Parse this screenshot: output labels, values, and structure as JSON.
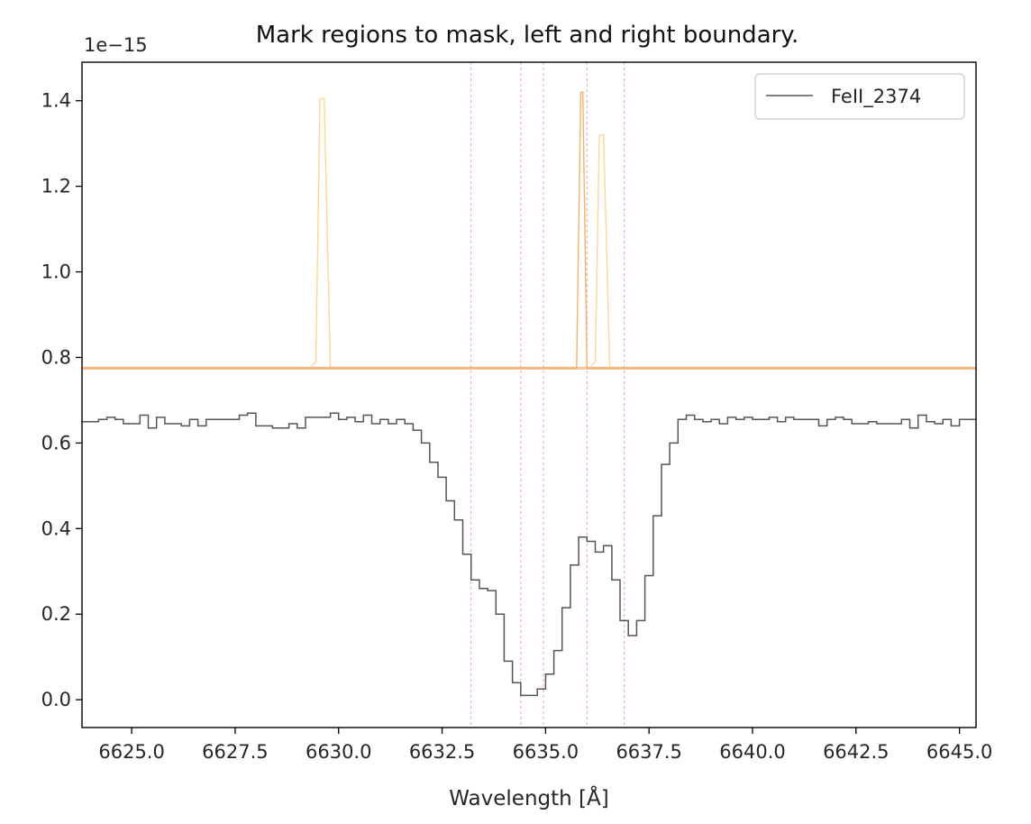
{
  "chart_data": {
    "type": "line",
    "title": "Mark regions to mask, left and right boundary.",
    "xlabel": "Wavelength  [Å]",
    "ylabel": "",
    "y_offset_label": "1e−15",
    "y_scale": 1e-15,
    "xlim": [
      6623.8,
      6645.4
    ],
    "ylim": [
      -0.065,
      1.49
    ],
    "x_ticks": [
      6625.0,
      6627.5,
      6630.0,
      6632.5,
      6635.0,
      6637.5,
      6640.0,
      6642.5,
      6645.0
    ],
    "x_tick_labels": [
      "6625.0",
      "6627.5",
      "6630.0",
      "6632.5",
      "6635.0",
      "6637.5",
      "6640.0",
      "6642.5",
      "6645.0"
    ],
    "y_ticks": [
      0.0,
      0.2,
      0.4,
      0.6,
      0.8,
      1.0,
      1.2,
      1.4
    ],
    "y_tick_labels": [
      "0.0",
      "0.2",
      "0.4",
      "0.6",
      "0.8",
      "1.0",
      "1.2",
      "1.4"
    ],
    "grid": false,
    "legend": {
      "placement": "top-right",
      "entries": [
        "FeII_2374"
      ]
    },
    "mask_boundaries": [
      6633.2,
      6634.4,
      6634.95,
      6636.0,
      6636.9
    ],
    "colors": {
      "flux": "#555555",
      "mask_line": "#f4a3a3",
      "model_light": "#ffd59a",
      "model_dark": "#f5b26a",
      "baseline": "#f6b894"
    },
    "series": [
      {
        "name": "FeII_2374",
        "style": "step",
        "x": [
          6623.8,
          6624.2,
          6624.4,
          6624.6,
          6624.8,
          6625.0,
          6625.2,
          6625.4,
          6625.6,
          6625.8,
          6626.0,
          6626.2,
          6626.4,
          6626.6,
          6626.8,
          6627.0,
          6627.2,
          6627.4,
          6627.6,
          6627.8,
          6628.0,
          6628.2,
          6628.4,
          6628.6,
          6628.8,
          6629.0,
          6629.2,
          6629.4,
          6629.6,
          6629.8,
          6630.0,
          6630.2,
          6630.4,
          6630.6,
          6630.8,
          6631.0,
          6631.2,
          6631.4,
          6631.6,
          6631.8,
          6632.0,
          6632.2,
          6632.4,
          6632.6,
          6632.8,
          6633.0,
          6633.2,
          6633.4,
          6633.6,
          6633.8,
          6634.0,
          6634.2,
          6634.4,
          6634.6,
          6634.8,
          6635.0,
          6635.2,
          6635.4,
          6635.6,
          6635.8,
          6636.0,
          6636.2,
          6636.4,
          6636.6,
          6636.8,
          6637.0,
          6637.2,
          6637.4,
          6637.6,
          6637.8,
          6638.0,
          6638.2,
          6638.4,
          6638.6,
          6638.8,
          6639.0,
          6639.2,
          6639.4,
          6639.6,
          6639.8,
          6640.0,
          6640.2,
          6640.4,
          6640.6,
          6640.8,
          6641.0,
          6641.2,
          6641.4,
          6641.6,
          6641.8,
          6642.0,
          6642.2,
          6642.4,
          6642.6,
          6642.8,
          6643.0,
          6643.2,
          6643.4,
          6643.6,
          6643.8,
          6644.0,
          6644.2,
          6644.4,
          6644.6,
          6644.8,
          6645.0
        ],
        "y": [
          0.65,
          0.655,
          0.66,
          0.655,
          0.645,
          0.645,
          0.665,
          0.635,
          0.66,
          0.645,
          0.645,
          0.64,
          0.655,
          0.64,
          0.655,
          0.655,
          0.655,
          0.655,
          0.665,
          0.67,
          0.64,
          0.64,
          0.635,
          0.635,
          0.645,
          0.635,
          0.66,
          0.66,
          0.66,
          0.67,
          0.655,
          0.66,
          0.65,
          0.665,
          0.645,
          0.655,
          0.645,
          0.655,
          0.645,
          0.63,
          0.6,
          0.555,
          0.52,
          0.465,
          0.42,
          0.34,
          0.28,
          0.26,
          0.255,
          0.2,
          0.09,
          0.04,
          0.01,
          0.01,
          0.025,
          0.06,
          0.115,
          0.215,
          0.315,
          0.38,
          0.37,
          0.345,
          0.36,
          0.28,
          0.185,
          0.15,
          0.185,
          0.29,
          0.43,
          0.55,
          0.6,
          0.655,
          0.665,
          0.655,
          0.65,
          0.655,
          0.645,
          0.66,
          0.655,
          0.66,
          0.655,
          0.655,
          0.66,
          0.65,
          0.66,
          0.655,
          0.655,
          0.655,
          0.64,
          0.655,
          0.66,
          0.655,
          0.645,
          0.645,
          0.65,
          0.645,
          0.645,
          0.645,
          0.655,
          0.635,
          0.665,
          0.65,
          0.645,
          0.655,
          0.64,
          0.655
        ]
      },
      {
        "name": "",
        "style": "line",
        "color_key": "model_light",
        "x": [
          6623.8,
          6629.3,
          6629.45,
          6629.55,
          6629.65,
          6629.8,
          6636.05,
          6636.2,
          6636.3,
          6636.4,
          6636.55,
          6645.4
        ],
        "y": [
          0.775,
          0.775,
          0.79,
          1.405,
          1.405,
          0.775,
          0.775,
          0.79,
          1.32,
          1.32,
          0.775,
          0.775
        ]
      },
      {
        "name": "",
        "style": "line",
        "color_key": "model_dark",
        "x": [
          6623.8,
          6635.75,
          6635.85,
          6635.9,
          6636.0,
          6645.4
        ],
        "y": [
          0.775,
          0.775,
          1.42,
          1.42,
          0.775,
          0.775
        ]
      }
    ]
  }
}
